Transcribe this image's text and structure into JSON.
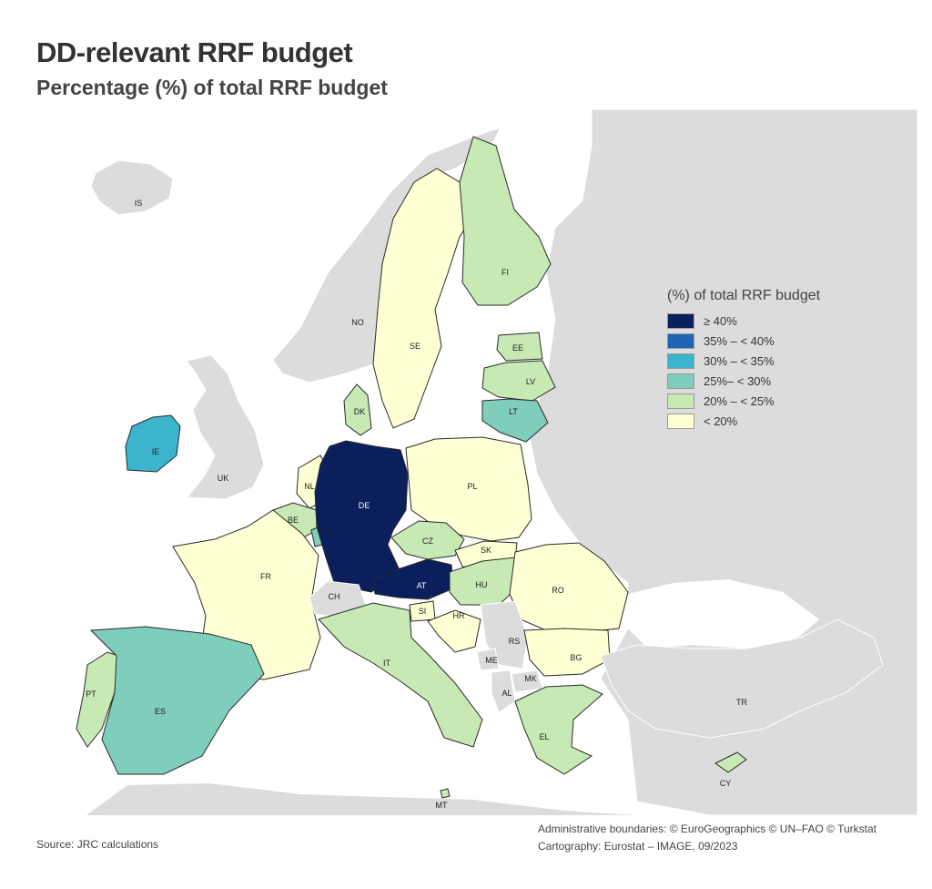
{
  "title": "DD-relevant RRF budget",
  "subtitle": "Percentage (%) of total RRF budget",
  "legend": {
    "title": "(%) of total RRF budget",
    "classes": [
      {
        "label": "≥ 40%",
        "color": "#0b1f5c"
      },
      {
        "label": "35% – < 40%",
        "color": "#1f63b5"
      },
      {
        "label": "30% – < 35%",
        "color": "#3bb4cc"
      },
      {
        "label": "25%– < 30%",
        "color": "#7fcdbb"
      },
      {
        "label": "20% – < 25%",
        "color": "#c7e9b4"
      },
      {
        "label": "< 20%",
        "color": "#ffffd4"
      }
    ]
  },
  "no_data_color": "#dcdcdc",
  "sea_color": "#ffffff",
  "countries": [
    {
      "code": "IS",
      "class": "no-data"
    },
    {
      "code": "NO",
      "class": "no-data"
    },
    {
      "code": "SE",
      "class": "< 20%"
    },
    {
      "code": "FI",
      "class": "20% – < 25%"
    },
    {
      "code": "EE",
      "class": "20% – < 25%"
    },
    {
      "code": "LV",
      "class": "20% – < 25%"
    },
    {
      "code": "LT",
      "class": "25%– < 30%"
    },
    {
      "code": "DK",
      "class": "20% – < 25%"
    },
    {
      "code": "IE",
      "class": "30% – < 35%"
    },
    {
      "code": "UK",
      "class": "no-data"
    },
    {
      "code": "NL",
      "class": "< 20%"
    },
    {
      "code": "BE",
      "class": "20% – < 25%"
    },
    {
      "code": "LU",
      "class": "25%– < 30%"
    },
    {
      "code": "DE",
      "class": "≥ 40%"
    },
    {
      "code": "PL",
      "class": "< 20%"
    },
    {
      "code": "CZ",
      "class": "20% – < 25%"
    },
    {
      "code": "SK",
      "class": "< 20%"
    },
    {
      "code": "AT",
      "class": "≥ 40%"
    },
    {
      "code": "HU",
      "class": "20% – < 25%"
    },
    {
      "code": "RO",
      "class": "< 20%"
    },
    {
      "code": "FR",
      "class": "< 20%"
    },
    {
      "code": "CH",
      "class": "no-data"
    },
    {
      "code": "SI",
      "class": "< 20%"
    },
    {
      "code": "HR",
      "class": "< 20%"
    },
    {
      "code": "IT",
      "class": "20% – < 25%"
    },
    {
      "code": "RS",
      "class": "no-data"
    },
    {
      "code": "ME",
      "class": "no-data"
    },
    {
      "code": "MK",
      "class": "no-data"
    },
    {
      "code": "AL",
      "class": "no-data"
    },
    {
      "code": "BG",
      "class": "< 20%"
    },
    {
      "code": "PT",
      "class": "20% – < 25%"
    },
    {
      "code": "ES",
      "class": "25%– < 30%"
    },
    {
      "code": "EL",
      "class": "20% – < 25%"
    },
    {
      "code": "TR",
      "class": "no-data"
    },
    {
      "code": "CY",
      "class": "20% – < 25%"
    },
    {
      "code": "MT",
      "class": "20% – < 25%"
    }
  ],
  "source": "Source: JRC calculations",
  "credits": {
    "boundaries": "Administrative boundaries: © EuroGeographics © UN–FAO © Turkstat",
    "cartography": "Cartography: Eurostat – IMAGE, 09/2023"
  }
}
